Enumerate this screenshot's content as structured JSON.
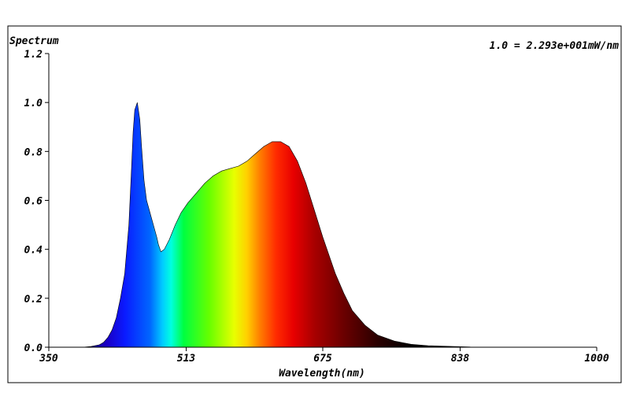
{
  "chart_data": {
    "type": "area",
    "title": "Spectrum",
    "scale_note": "1.0 = 2.293e+001mW/nm",
    "xlabel": "Wavelength(nm)",
    "ylabel": "",
    "xlim": [
      350,
      1000
    ],
    "ylim": [
      0,
      1.2
    ],
    "x_ticks": [
      350,
      513,
      675,
      838,
      1000
    ],
    "y_ticks": [
      "0.0",
      "0.2",
      "0.4",
      "0.6",
      "0.8",
      "1.0",
      "1.2"
    ],
    "fill": "visible-spectrum gradient",
    "series": [
      {
        "x": [
          350,
          390,
          400,
          410,
          415,
          420,
          425,
          430,
          435,
          440,
          445,
          448,
          450,
          452,
          455,
          458,
          460,
          463,
          466,
          470,
          474,
          478,
          480,
          483,
          487,
          493,
          500,
          507,
          515,
          525,
          535,
          545,
          555,
          565,
          575,
          585,
          595,
          605,
          615,
          625,
          635,
          645,
          655,
          665,
          675,
          690,
          700,
          710,
          725,
          740,
          760,
          780,
          800,
          850,
          900,
          1000
        ],
        "y": [
          0.0,
          0.0,
          0.003,
          0.01,
          0.02,
          0.04,
          0.07,
          0.12,
          0.2,
          0.3,
          0.5,
          0.72,
          0.88,
          0.97,
          1.0,
          0.93,
          0.82,
          0.68,
          0.6,
          0.55,
          0.5,
          0.45,
          0.42,
          0.39,
          0.4,
          0.44,
          0.5,
          0.55,
          0.59,
          0.63,
          0.67,
          0.7,
          0.72,
          0.73,
          0.74,
          0.76,
          0.79,
          0.82,
          0.84,
          0.84,
          0.82,
          0.76,
          0.67,
          0.56,
          0.45,
          0.3,
          0.22,
          0.15,
          0.09,
          0.05,
          0.025,
          0.012,
          0.006,
          0.001,
          0.0,
          0.0
        ]
      }
    ]
  }
}
